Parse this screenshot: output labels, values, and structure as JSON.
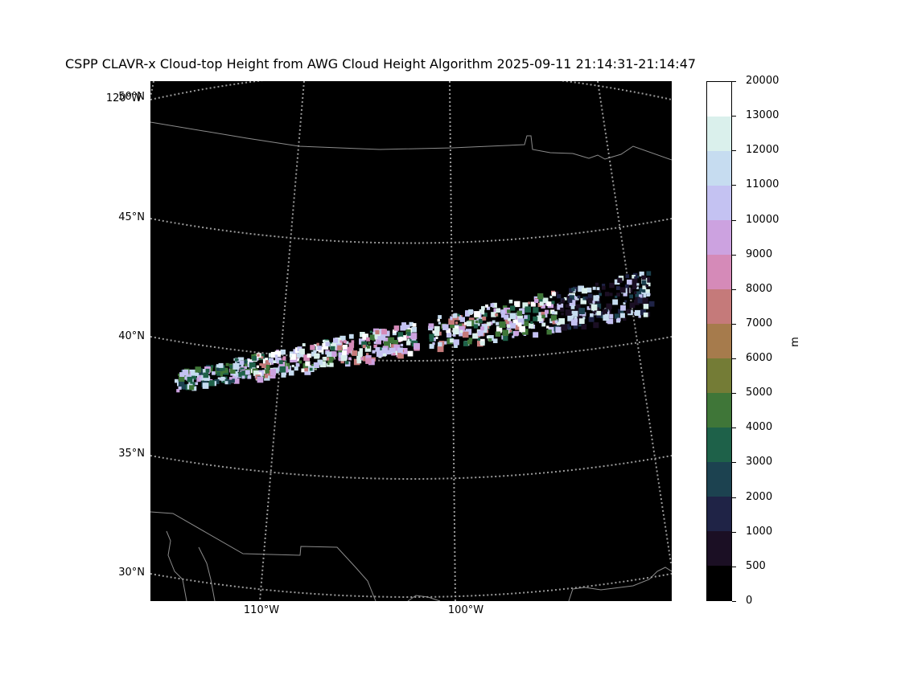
{
  "title": "CSPP CLAVR-x Cloud-top Height from AWG Cloud Height Algorithm 2025-09-11 21:14:31-21:14:47",
  "map": {
    "lat_labels": [
      "50°N",
      "45°N",
      "40°N",
      "35°N",
      "30°N"
    ],
    "lon_labels": [
      "110°W",
      "100°W"
    ],
    "overlap_label": "120°W",
    "background_color": "#000000",
    "gridline_color": "#9a9a9a",
    "coastline_color": "#8c8c8c"
  },
  "colorbar": {
    "unit": "m",
    "tick_labels": [
      "20000",
      "13000",
      "12000",
      "11000",
      "10000",
      "9000",
      "8000",
      "7000",
      "6000",
      "5000",
      "4000",
      "3000",
      "2000",
      "1000",
      "500",
      "0"
    ],
    "colors": [
      "#ffffff",
      "#daf0ec",
      "#c6dcf0",
      "#c4c2f2",
      "#cca2e0",
      "#d58ab8",
      "#c57a7a",
      "#a67b4c",
      "#747c36",
      "#3f7638",
      "#1e6149",
      "#1c4250",
      "#1f2346",
      "#1b0f24",
      "#000000"
    ]
  }
}
